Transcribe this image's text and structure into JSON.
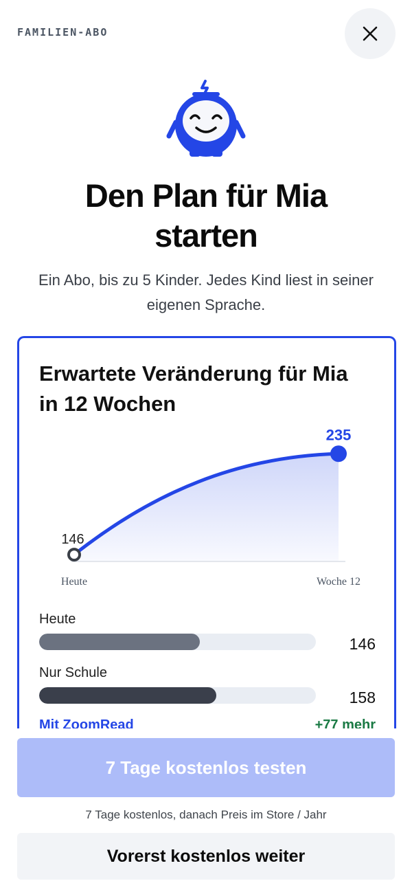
{
  "header": {
    "label": "FAMILIEN-ABO",
    "close_icon": "close-icon"
  },
  "mascot": {
    "icon": "robot-mascot-icon",
    "color": "#2446e6"
  },
  "headline": {
    "line1": "Den Plan für Mia",
    "line2": "starten"
  },
  "subhead": {
    "line1": "Ein Abo, bis zu 5 Kinder. Jedes Kind liest in seiner",
    "line2": "eigenen Sprache."
  },
  "card": {
    "title_line1": "Erwartete Veränderung für Mia",
    "title_line2": "in 12 Wochen",
    "accent": "#2446e6"
  },
  "chart_data": {
    "type": "area",
    "title": "Erwartete Veränderung für Mia in 12 Wochen",
    "x": [
      "Heute",
      "Woche 12"
    ],
    "series": [
      {
        "values": [
          146,
          235
        ]
      }
    ],
    "start_label": "146",
    "end_label": "235",
    "x_start_label": "Heute",
    "x_end_label": "Woche 12",
    "ylim": [
      140,
      240
    ],
    "grid": false
  },
  "comparison": [
    {
      "label": "Heute",
      "value": "146",
      "fraction": 0.58,
      "color": "#6b7280"
    },
    {
      "label": "Nur Schule",
      "value": "158",
      "fraction": 0.64,
      "color": "#3a3f4b"
    }
  ],
  "zoomread": {
    "label": "Mit ZoomRead",
    "delta": "+77 mehr"
  },
  "cta": {
    "primary": "7 Tage kostenlos testen",
    "note": "7 Tage kostenlos, danach Preis im Store / Jahr",
    "secondary": "Vorerst kostenlos weiter"
  }
}
